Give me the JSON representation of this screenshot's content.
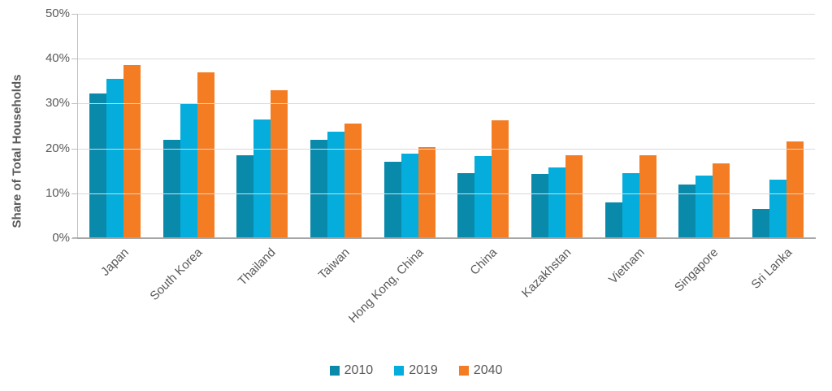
{
  "chart_data": {
    "type": "bar",
    "title": "",
    "ylabel": "Share of Total Households",
    "xlabel": "",
    "categories": [
      "Japan",
      "South Korea",
      "Thailand",
      "Taiwan",
      "Hong Kong, China",
      "China",
      "Kazakhstan",
      "Vietnam",
      "Singapore",
      "Sri Lanka"
    ],
    "series": [
      {
        "name": "2010",
        "color": "#0A8AAB",
        "values": [
          32.3,
          22.0,
          18.5,
          22.0,
          17.0,
          14.5,
          14.3,
          8.0,
          12.0,
          6.5
        ]
      },
      {
        "name": "2019",
        "color": "#04ADDB",
        "values": [
          35.5,
          30.0,
          26.5,
          23.8,
          18.8,
          18.3,
          15.7,
          14.5,
          14.0,
          13.0
        ]
      },
      {
        "name": "2040",
        "color": "#F47D23",
        "values": [
          38.5,
          37.0,
          33.0,
          25.5,
          20.3,
          26.3,
          18.5,
          18.5,
          16.6,
          21.5
        ]
      }
    ],
    "ylim": [
      0,
      50
    ],
    "yticks": [
      "0%",
      "10%",
      "20%",
      "30%",
      "40%",
      "50%"
    ],
    "grid": "horizontal",
    "legend_position": "bottom"
  },
  "colors": {
    "gridline": "#D9D9D9",
    "axis": "#A6A6A6",
    "text": "#595959"
  }
}
